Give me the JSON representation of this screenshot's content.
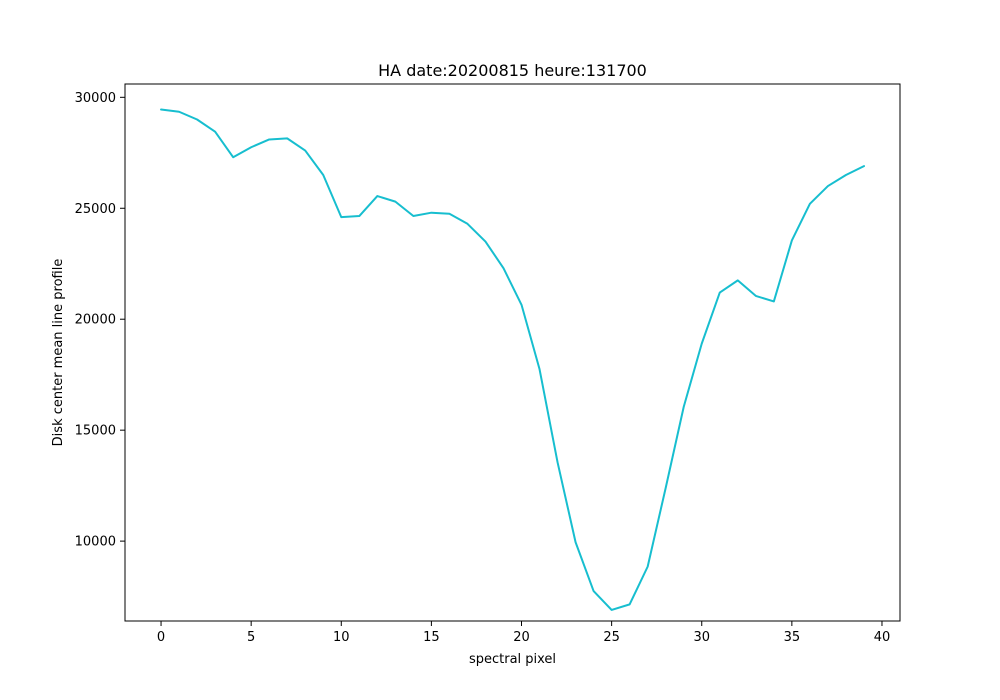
{
  "chart_data": {
    "type": "line",
    "title": "HA date:20200815 heure:131700",
    "xlabel": "spectral pixel",
    "ylabel": "Disk center mean line profile",
    "xlim": [
      -2,
      41
    ],
    "ylim": [
      6400,
      30600
    ],
    "xticks": [
      0,
      5,
      10,
      15,
      20,
      25,
      30,
      35,
      40
    ],
    "yticks": [
      10000,
      15000,
      20000,
      25000,
      30000
    ],
    "grid": false,
    "line_color": "#17becf",
    "series": [
      {
        "x": [
          0,
          1,
          2,
          3,
          4,
          5,
          6,
          7,
          8,
          9,
          10,
          11,
          12,
          13,
          14,
          15,
          16,
          17,
          18,
          19,
          20,
          21,
          22,
          23,
          24,
          25,
          26,
          27,
          28,
          29,
          30,
          31,
          32,
          33,
          34,
          35,
          36,
          37,
          38,
          39
        ],
        "values": [
          29450,
          29350,
          29000,
          28450,
          27300,
          27750,
          28100,
          28150,
          27600,
          26500,
          24600,
          24650,
          25550,
          25300,
          24650,
          24800,
          24750,
          24300,
          23500,
          22300,
          20650,
          17750,
          13550,
          9950,
          7750,
          6900,
          7150,
          8850,
          12400,
          16050,
          18900,
          21200,
          21750,
          21050,
          20800,
          23550,
          25200,
          26000,
          26500,
          26900
        ]
      }
    ]
  }
}
